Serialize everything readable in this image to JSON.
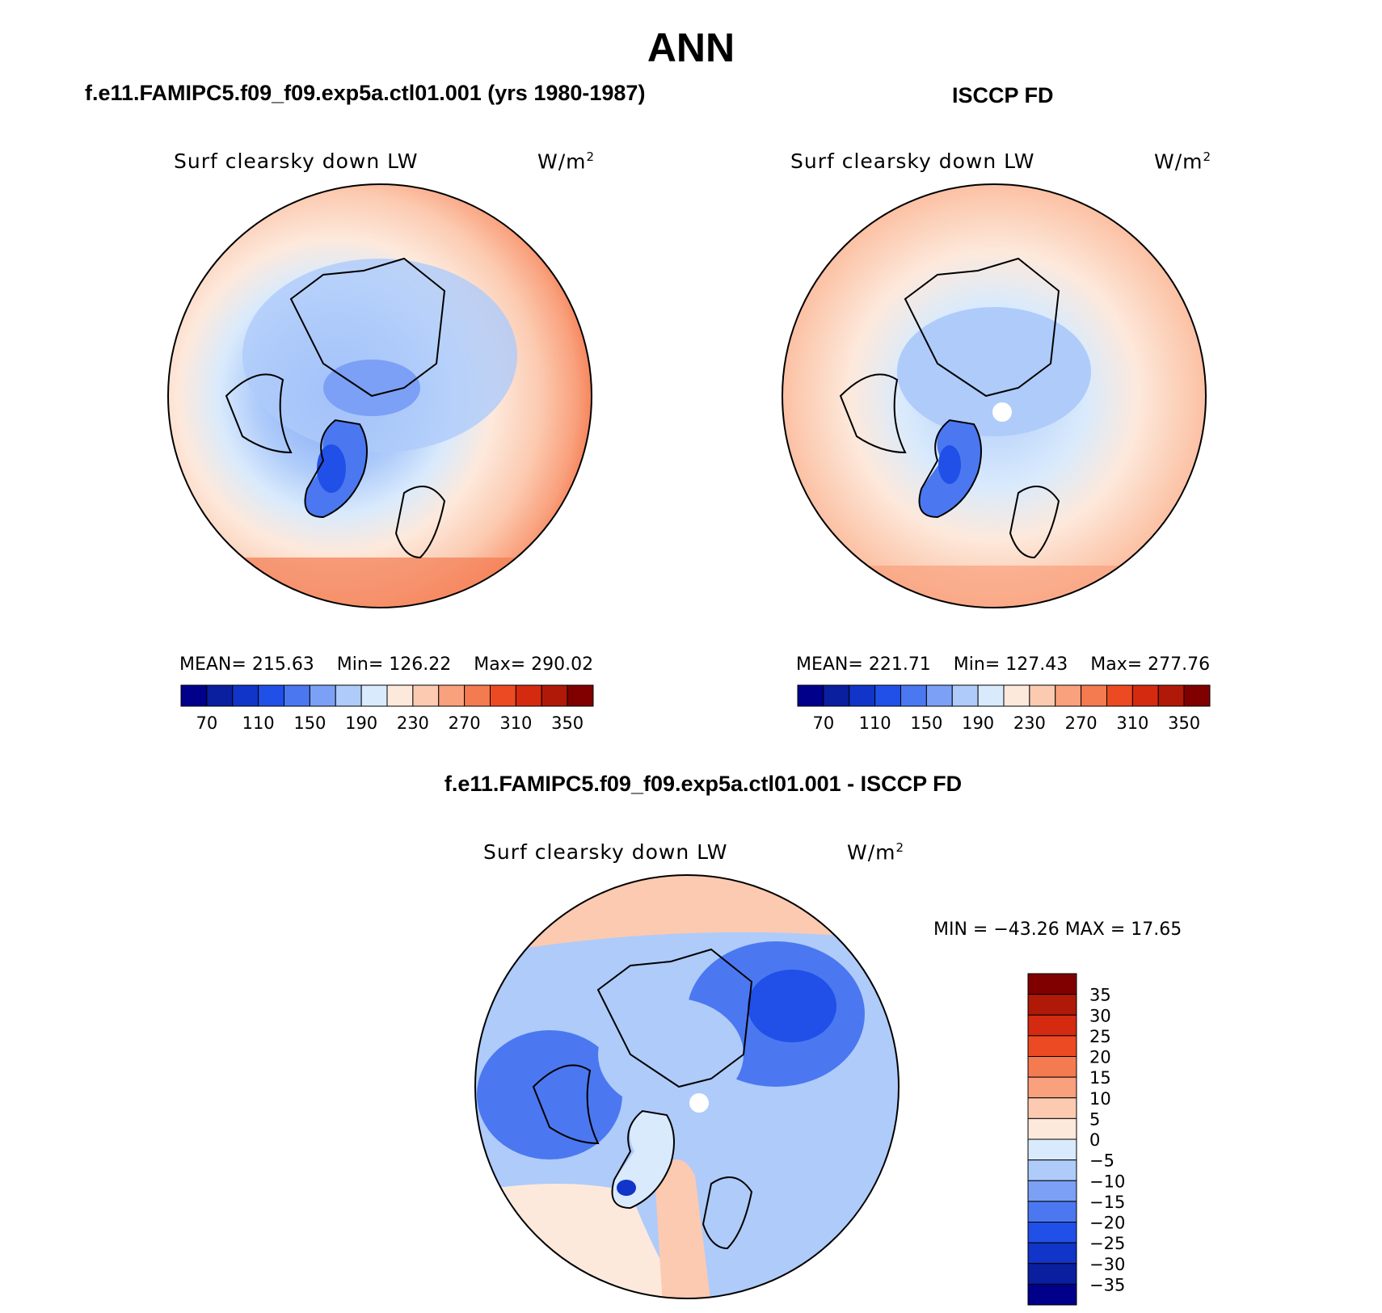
{
  "title": "ANN",
  "panels": [
    {
      "title": "f.e11.FAMIPC5.f09_f09.exp5a.ctl01.001 (yrs 1980-1987)",
      "variable": "Surf clearsky down LW",
      "units": "W/m",
      "units_exp": "2",
      "mean_label": "MEAN=",
      "mean": "215.63",
      "min_label": "Min=",
      "min": "126.22",
      "max_label": "Max=",
      "max": "290.02"
    },
    {
      "title": "ISCCP FD",
      "variable": "Surf clearsky down LW",
      "units": "W/m",
      "units_exp": "2",
      "mean_label": "MEAN=",
      "mean": "221.71",
      "min_label": "Min=",
      "min": "127.43",
      "max_label": "Max=",
      "max": "277.76"
    }
  ],
  "diff_panel": {
    "title": "f.e11.FAMIPC5.f09_f09.exp5a.ctl01.001 - ISCCP FD",
    "variable": "Surf clearsky down LW",
    "units": "W/m",
    "units_exp": "2",
    "minmax_label": "MIN = −43.26 MAX =  17.65"
  },
  "chart_data": {
    "type": "heatmap",
    "projection": "north-polar-stereographic",
    "abs_colorbar": {
      "colors": [
        "#00008b",
        "#0a1ea0",
        "#1035c8",
        "#2050e8",
        "#4b78f0",
        "#7ca0f5",
        "#aecbfa",
        "#d9eafc",
        "#fde9dc",
        "#fccab0",
        "#f9a07c",
        "#f47a50",
        "#ec4a23",
        "#d42a10",
        "#b01808",
        "#800000"
      ],
      "tick_labels": [
        "70",
        "110",
        "150",
        "190",
        "230",
        "270",
        "310",
        "350"
      ]
    },
    "diff_colorbar": {
      "colors": [
        "#00008b",
        "#0a1ea0",
        "#1035c8",
        "#2050e8",
        "#4b78f0",
        "#7ca0f5",
        "#aecbfa",
        "#d9eafc",
        "#fde9dc",
        "#fccab0",
        "#f9a07c",
        "#f47a50",
        "#ec4a23",
        "#d42a10",
        "#b01808",
        "#800000"
      ],
      "tick_labels": [
        "35",
        "30",
        "25",
        "20",
        "15",
        "10",
        "5",
        "0",
        "−5",
        "−10",
        "−15",
        "−20",
        "−25",
        "−30",
        "−35"
      ]
    }
  }
}
